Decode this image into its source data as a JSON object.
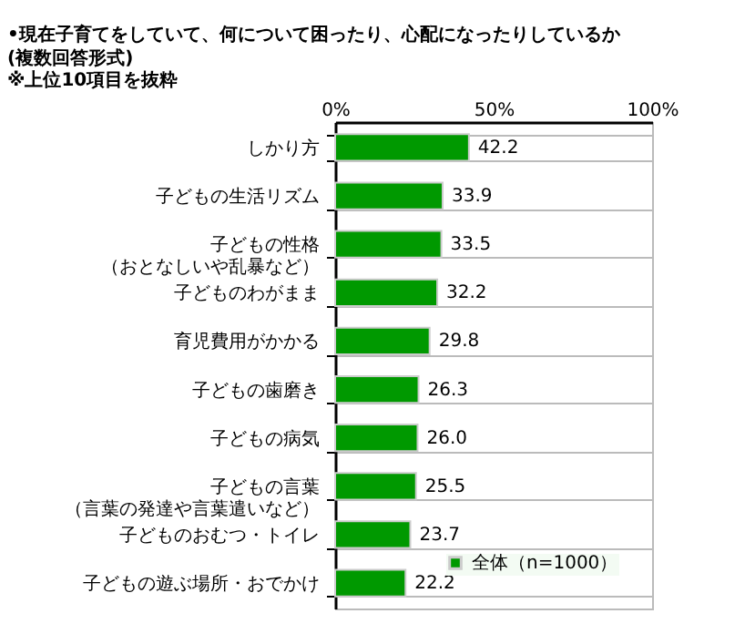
{
  "chart_data": {
    "type": "bar",
    "orientation": "horizontal",
    "title": "•現在子育てをしていて、何について困ったり、心配になったりしているか",
    "subtitle": "(複数回答形式)",
    "annotations": [
      "※上位10項目を抜粋"
    ],
    "categories": [
      "しかり方",
      "子どもの生活リズム",
      "子どもの性格（おとなしいや乱暴など）",
      "子どものわがまま",
      "育児費用がかかる",
      "子どもの歯磨き",
      "子どもの病気",
      "子どもの言葉（言葉の発達や言葉遣いなど）",
      "子どものおむつ・トイレ",
      "子どもの遊ぶ場所・おでかけ"
    ],
    "series": [
      {
        "name": "全体（n=1000）",
        "color": "#009900",
        "values": [
          42.2,
          33.9,
          33.5,
          32.2,
          29.8,
          26.3,
          26.0,
          25.5,
          23.7,
          22.2
        ]
      }
    ],
    "xlim": [
      0,
      100
    ],
    "xticks": [
      {
        "value": 0,
        "label": "0%"
      },
      {
        "value": 50,
        "label": "50%"
      },
      {
        "value": 100,
        "label": "100%"
      }
    ],
    "value_labels": [
      "42.2",
      "33.9",
      "33.5",
      "32.2",
      "29.8",
      "26.3",
      "26.0",
      "25.5",
      "23.7",
      "22.2"
    ],
    "grid": "y",
    "legend": "bottom right"
  }
}
